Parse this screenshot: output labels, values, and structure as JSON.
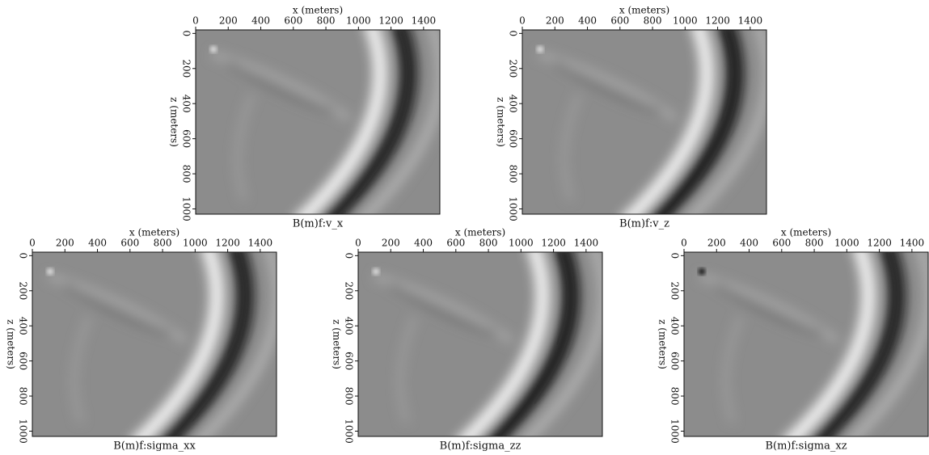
{
  "figure": {
    "panels": [
      {
        "title": "B(m)f:v_x",
        "x_label": "x (meters)",
        "y_label": "z (meters)",
        "xlim": [
          0,
          1500
        ],
        "ylim": [
          -20,
          1030
        ],
        "xticks": [
          0,
          200,
          400,
          600,
          800,
          1000,
          1200,
          1400
        ],
        "yticks": [
          0,
          200,
          400,
          600,
          800,
          1000
        ]
      },
      {
        "title": "B(m)f:v_z",
        "x_label": "x (meters)",
        "y_label": "z (meters)",
        "xlim": [
          0,
          1500
        ],
        "ylim": [
          -20,
          1030
        ],
        "xticks": [
          0,
          200,
          400,
          600,
          800,
          1000,
          1200,
          1400
        ],
        "yticks": [
          0,
          200,
          400,
          600,
          800,
          1000
        ]
      },
      {
        "title": "B(m)f:sigma_xx",
        "x_label": "x (meters)",
        "y_label": "z (meters)",
        "xlim": [
          0,
          1500
        ],
        "ylim": [
          -20,
          1030
        ],
        "xticks": [
          0,
          200,
          400,
          600,
          800,
          1000,
          1200,
          1400
        ],
        "yticks": [
          0,
          200,
          400,
          600,
          800,
          1000
        ]
      },
      {
        "title": "B(m)f:sigma_zz",
        "x_label": "x (meters)",
        "y_label": "z (meters)",
        "xlim": [
          0,
          1500
        ],
        "ylim": [
          -20,
          1030
        ],
        "xticks": [
          0,
          200,
          400,
          600,
          800,
          1000,
          1200,
          1400
        ],
        "yticks": [
          0,
          200,
          400,
          600,
          800,
          1000
        ]
      },
      {
        "title": "B(m)f:sigma_xz",
        "x_label": "x (meters)",
        "y_label": "z (meters)",
        "xlim": [
          0,
          1500
        ],
        "ylim": [
          -20,
          1030
        ],
        "xticks": [
          0,
          200,
          400,
          600,
          800,
          1000,
          1200,
          1400
        ],
        "yticks": [
          0,
          200,
          400,
          600,
          800,
          1000
        ]
      }
    ]
  }
}
